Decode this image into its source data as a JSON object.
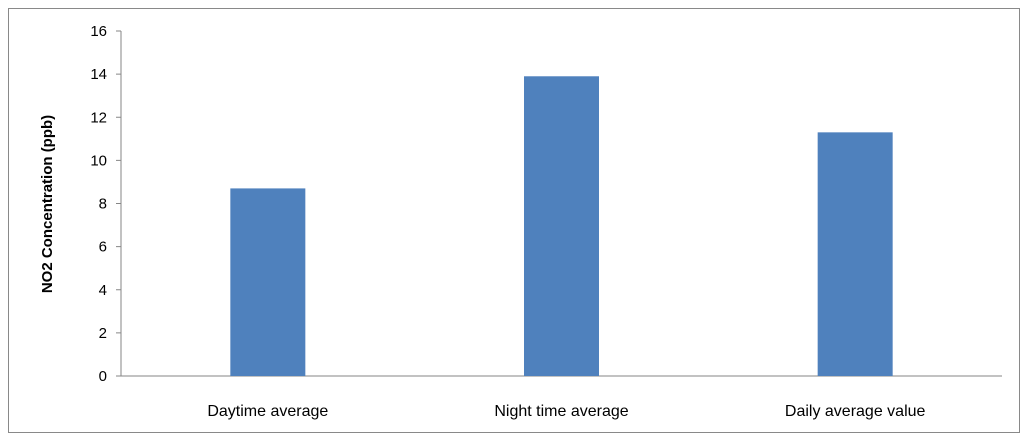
{
  "chart_data": {
    "type": "bar",
    "categories": [
      "Daytime average",
      "Night time average",
      "Daily average value"
    ],
    "values": [
      8.7,
      13.9,
      11.3
    ],
    "title": "",
    "xlabel": "",
    "ylabel": "NO2 Concentration (ppb)",
    "ylim": [
      0,
      16
    ],
    "yticks": [
      "0",
      "2",
      "4",
      "6",
      "8",
      "10",
      "12",
      "14",
      "16"
    ],
    "grid": false,
    "legend": "none",
    "bar_color": "#4f81bd"
  }
}
